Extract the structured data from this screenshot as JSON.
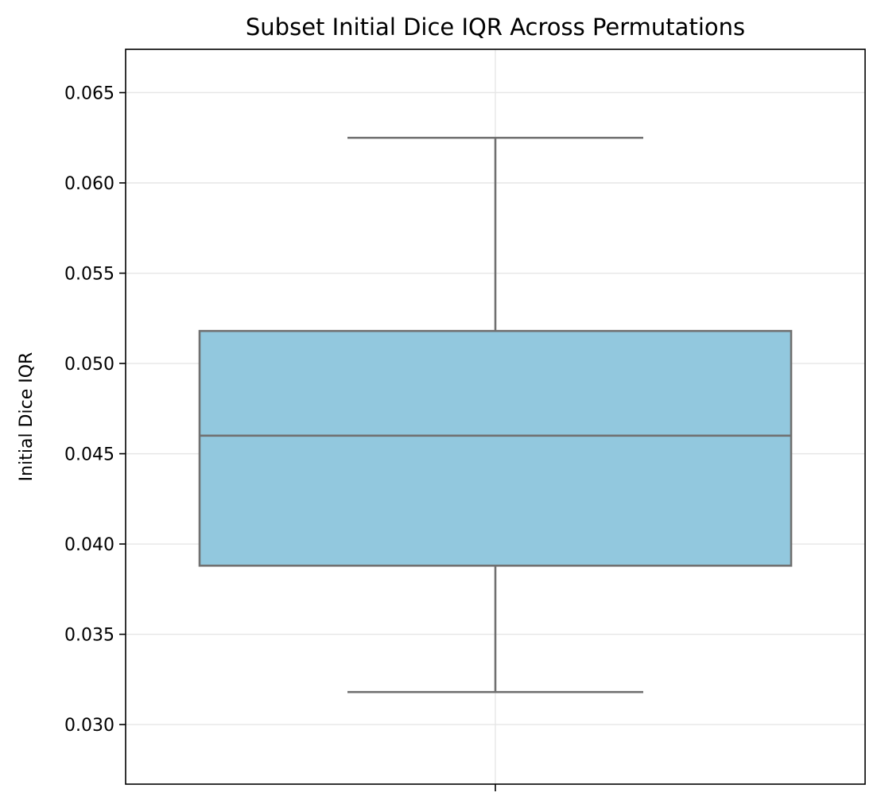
{
  "chart_data": {
    "type": "box",
    "title": "Subset Initial Dice IQR Across Permutations",
    "xlabel": "",
    "ylabel": "Initial Dice IQR",
    "ylim": [
      0.0267,
      0.0674
    ],
    "yticks": [
      "0.030",
      "0.035",
      "0.040",
      "0.045",
      "0.050",
      "0.055",
      "0.060",
      "0.065"
    ],
    "grid": true,
    "box": {
      "whisker_low": 0.0318,
      "q1": 0.0388,
      "median": 0.046,
      "q3": 0.0518,
      "whisker_high": 0.0625
    },
    "colors": {
      "box_fill": "#92c8de",
      "box_edge": "#707070",
      "grid": "#e6e6e6",
      "axes": "#000000"
    }
  }
}
